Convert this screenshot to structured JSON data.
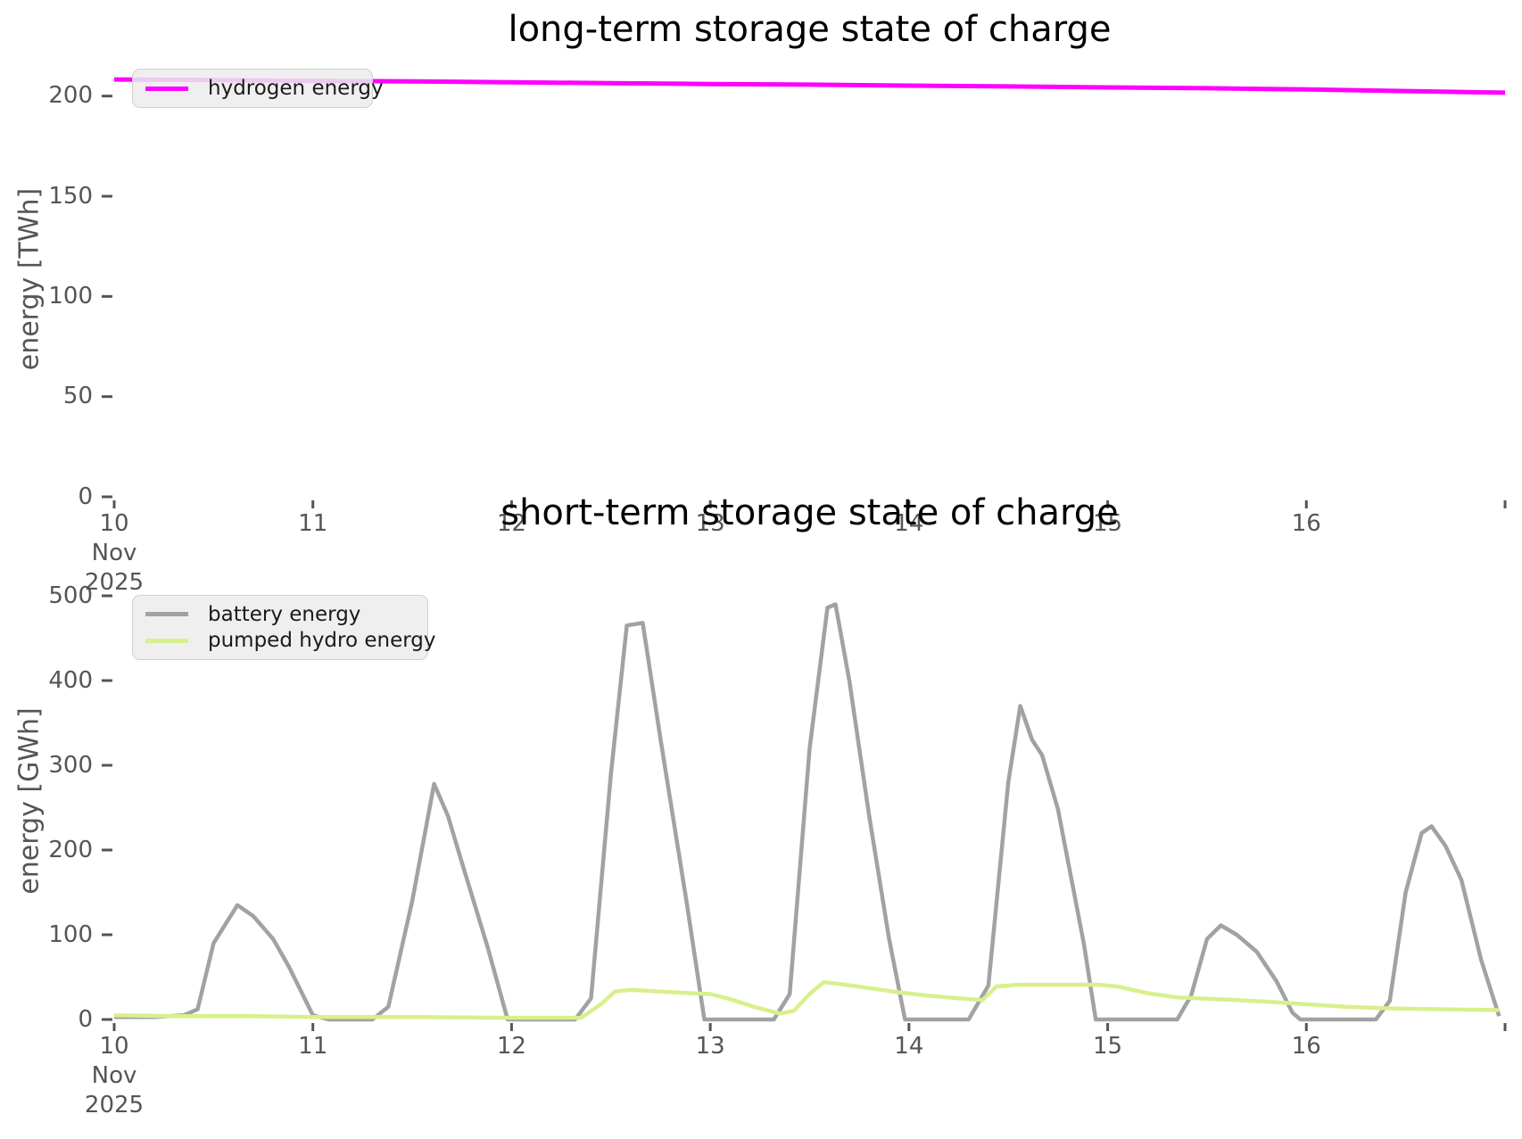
{
  "style": {
    "background": "#ffffff",
    "tick_color": "#555555",
    "title_color": "#000000",
    "legend_background": "#ececec",
    "hydrogen_color": "#ff00ff",
    "battery_color": "#a2a2a2",
    "pumped_hydro_color": "#d8f08c"
  },
  "chart_data": [
    {
      "type": "line",
      "title": "long-term storage state of charge",
      "ylabel": "energy [TWh]",
      "legend_position": "upper left",
      "grid": false,
      "x_axis": {
        "min": 10,
        "max": 17,
        "ticks": [
          {
            "v": 10,
            "label": "10",
            "sub": [
              "Nov",
              "2025"
            ]
          },
          {
            "v": 11,
            "label": "11"
          },
          {
            "v": 12,
            "label": "12"
          },
          {
            "v": 13,
            "label": "13"
          },
          {
            "v": 14,
            "label": "14"
          },
          {
            "v": 15,
            "label": "15"
          },
          {
            "v": 16,
            "label": "16"
          },
          {
            "v": 17,
            "label": ""
          }
        ]
      },
      "y_axis": {
        "min": 0,
        "max": 215,
        "ticks": [
          0,
          50,
          100,
          150,
          200
        ]
      },
      "series": [
        {
          "name": "hydrogen energy",
          "color": "#ff00ff",
          "points": [
            [
              10.0,
              208.3
            ],
            [
              10.5,
              208.0
            ],
            [
              11.0,
              207.6
            ],
            [
              11.5,
              207.3
            ],
            [
              12.0,
              206.9
            ],
            [
              12.5,
              206.4
            ],
            [
              13.0,
              206.0
            ],
            [
              13.5,
              205.7
            ],
            [
              14.0,
              205.2
            ],
            [
              14.5,
              204.8
            ],
            [
              15.0,
              204.3
            ],
            [
              15.5,
              203.9
            ],
            [
              16.0,
              203.3
            ],
            [
              16.5,
              202.5
            ],
            [
              17.0,
              201.7
            ]
          ]
        }
      ]
    },
    {
      "type": "line",
      "title": "short-term storage state of charge",
      "ylabel": "energy [GWh]",
      "legend_position": "upper left",
      "grid": false,
      "x_axis": {
        "min": 10,
        "max": 17,
        "ticks": [
          {
            "v": 10,
            "label": "10",
            "sub": [
              "Nov",
              "2025"
            ]
          },
          {
            "v": 11,
            "label": "11"
          },
          {
            "v": 12,
            "label": "12"
          },
          {
            "v": 13,
            "label": "13"
          },
          {
            "v": 14,
            "label": "14"
          },
          {
            "v": 15,
            "label": "15"
          },
          {
            "v": 16,
            "label": "16"
          },
          {
            "v": 17,
            "label": ""
          }
        ]
      },
      "y_axis": {
        "min": 0,
        "max": 520,
        "ticks": [
          0,
          100,
          200,
          300,
          400,
          500
        ]
      },
      "series": [
        {
          "name": "battery energy",
          "color": "#a2a2a2",
          "points": [
            [
              10.0,
              3
            ],
            [
              10.2,
              3
            ],
            [
              10.35,
              5
            ],
            [
              10.42,
              12
            ],
            [
              10.5,
              90
            ],
            [
              10.62,
              135
            ],
            [
              10.7,
              122
            ],
            [
              10.8,
              95
            ],
            [
              10.88,
              62
            ],
            [
              11.0,
              5
            ],
            [
              11.08,
              0
            ],
            [
              11.3,
              0
            ],
            [
              11.38,
              15
            ],
            [
              11.5,
              140
            ],
            [
              11.61,
              278
            ],
            [
              11.68,
              240
            ],
            [
              11.75,
              185
            ],
            [
              11.88,
              85
            ],
            [
              11.98,
              0
            ],
            [
              12.1,
              0
            ],
            [
              12.32,
              0
            ],
            [
              12.4,
              25
            ],
            [
              12.5,
              290
            ],
            [
              12.58,
              465
            ],
            [
              12.66,
              468
            ],
            [
              12.75,
              330
            ],
            [
              12.88,
              140
            ],
            [
              12.97,
              0
            ],
            [
              13.1,
              0
            ],
            [
              13.32,
              0
            ],
            [
              13.4,
              30
            ],
            [
              13.5,
              320
            ],
            [
              13.59,
              486
            ],
            [
              13.63,
              490
            ],
            [
              13.7,
              400
            ],
            [
              13.8,
              240
            ],
            [
              13.9,
              95
            ],
            [
              13.98,
              0
            ],
            [
              14.1,
              0
            ],
            [
              14.3,
              0
            ],
            [
              14.4,
              40
            ],
            [
              14.5,
              280
            ],
            [
              14.56,
              370
            ],
            [
              14.62,
              330
            ],
            [
              14.67,
              312
            ],
            [
              14.75,
              248
            ],
            [
              14.88,
              90
            ],
            [
              14.94,
              0
            ],
            [
              15.1,
              0
            ],
            [
              15.35,
              0
            ],
            [
              15.42,
              28
            ],
            [
              15.5,
              95
            ],
            [
              15.57,
              111
            ],
            [
              15.65,
              100
            ],
            [
              15.75,
              80
            ],
            [
              15.85,
              45
            ],
            [
              15.93,
              8
            ],
            [
              15.97,
              0
            ],
            [
              16.1,
              0
            ],
            [
              16.35,
              0
            ],
            [
              16.42,
              22
            ],
            [
              16.5,
              150
            ],
            [
              16.58,
              220
            ],
            [
              16.63,
              228
            ],
            [
              16.7,
              205
            ],
            [
              16.78,
              165
            ],
            [
              16.88,
              70
            ],
            [
              16.97,
              4
            ]
          ]
        },
        {
          "name": "pumped hydro energy",
          "color": "#d8f08c",
          "points": [
            [
              10.0,
              5
            ],
            [
              10.3,
              4
            ],
            [
              10.7,
              4
            ],
            [
              11.0,
              3
            ],
            [
              11.5,
              3
            ],
            [
              12.0,
              2
            ],
            [
              12.35,
              2
            ],
            [
              12.45,
              18
            ],
            [
              12.52,
              33
            ],
            [
              12.6,
              35
            ],
            [
              12.75,
              33
            ],
            [
              12.9,
              31
            ],
            [
              13.0,
              30
            ],
            [
              13.1,
              24
            ],
            [
              13.22,
              15
            ],
            [
              13.35,
              7
            ],
            [
              13.42,
              10
            ],
            [
              13.5,
              30
            ],
            [
              13.57,
              44
            ],
            [
              13.65,
              42
            ],
            [
              13.8,
              37
            ],
            [
              13.95,
              32
            ],
            [
              14.1,
              28
            ],
            [
              14.25,
              25
            ],
            [
              14.37,
              23
            ],
            [
              14.44,
              39
            ],
            [
              14.55,
              41
            ],
            [
              14.75,
              41
            ],
            [
              14.95,
              41
            ],
            [
              15.05,
              39
            ],
            [
              15.2,
              31
            ],
            [
              15.35,
              26
            ],
            [
              15.55,
              24
            ],
            [
              15.8,
              21
            ],
            [
              16.0,
              18
            ],
            [
              16.2,
              15
            ],
            [
              16.45,
              13
            ],
            [
              16.7,
              12
            ],
            [
              16.97,
              11
            ]
          ]
        }
      ]
    }
  ]
}
